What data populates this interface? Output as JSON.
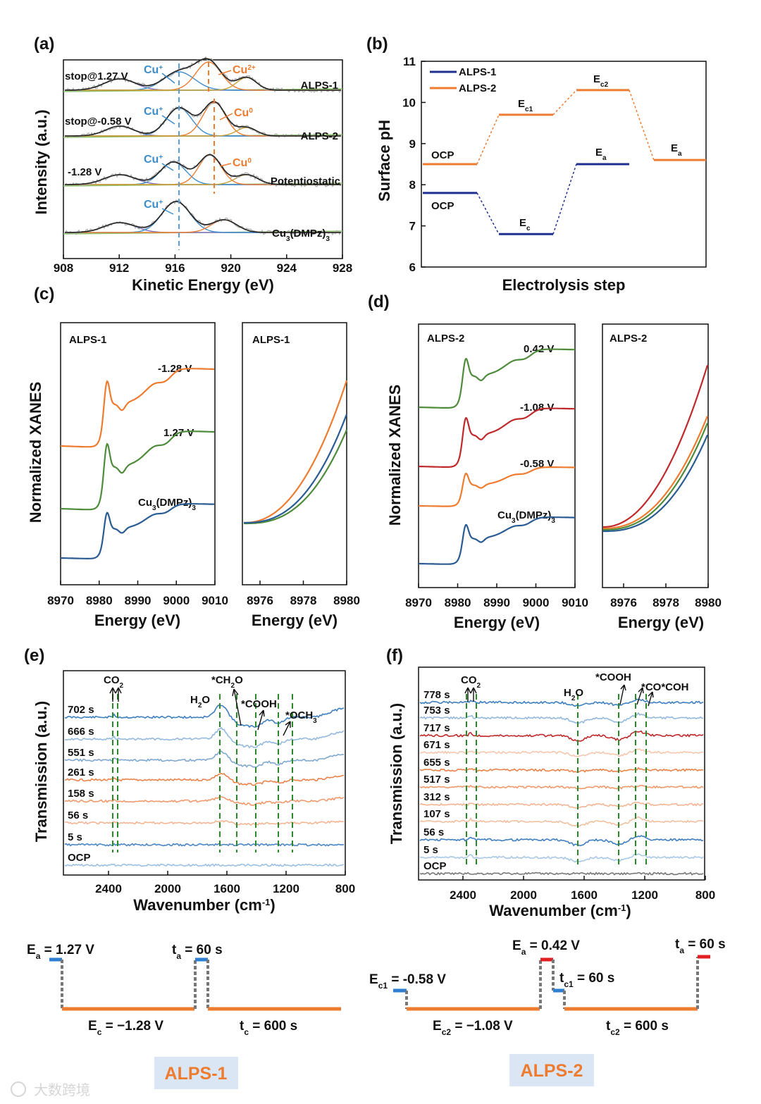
{
  "chart_data": [
    {
      "panel": "(a)",
      "type": "line",
      "xlabel": "Kinetic Energy (eV)",
      "ylabel": "Intensity (a.u.)",
      "xlim": [
        908,
        928
      ],
      "xticks": [
        "908",
        "912",
        "916",
        "920",
        "924",
        "928"
      ],
      "series": [
        {
          "name": "ALPS-1",
          "note": "stop@1.27 V",
          "peaks": {
            "Cu+": 916.2,
            "Cu2+": 918.5
          }
        },
        {
          "name": "ALPS-2",
          "note": "stop@-0.58 V",
          "peaks": {
            "Cu+": 916.2,
            "Cu0": 918.9
          }
        },
        {
          "name": "Potentiostatic",
          "note": "-1.28 V",
          "peaks": {
            "Cu+": 916.0,
            "Cu0": 918.5
          }
        },
        {
          "name": "Cu3(DMPz)3",
          "note": "",
          "peaks": {
            "Cu+": 916.0
          }
        }
      ],
      "annotations": [
        "Cu+",
        "Cu2+",
        "Cu0"
      ]
    },
    {
      "panel": "(b)",
      "type": "line",
      "xlabel": "Electrolysis step",
      "ylabel": "Surface pH",
      "ylim": [
        6,
        11
      ],
      "yticks": [
        "6",
        "7",
        "8",
        "9",
        "10",
        "11"
      ],
      "series": [
        {
          "name": "ALPS-1",
          "color": "#1f2f8f",
          "steps": [
            {
              "label": "OCP",
              "pH": 7.8
            },
            {
              "label": "Ec",
              "pH": 6.8
            },
            {
              "label": "Ea",
              "pH": 8.5
            }
          ]
        },
        {
          "name": "ALPS-2",
          "color": "#ee7c30",
          "steps": [
            {
              "label": "OCP",
              "pH": 8.5
            },
            {
              "label": "Ec1",
              "pH": 9.7
            },
            {
              "label": "Ec2",
              "pH": 10.3
            },
            {
              "label": "Ea",
              "pH": 8.6
            }
          ]
        }
      ]
    },
    {
      "panel": "(c)",
      "type": "line",
      "ylabel": "Normalized XANES",
      "subpanels": [
        {
          "title": "ALPS-1",
          "xlabel": "Energy (eV)",
          "xticks": [
            "8970",
            "8980",
            "8990",
            "9000",
            "9010"
          ],
          "series": [
            {
              "name": "-1.28 V",
              "color": "#ee7c30"
            },
            {
              "name": "1.27 V",
              "color": "#4e8b3a"
            },
            {
              "name": "Cu3(DMPz)3",
              "color": "#2a5c94"
            }
          ]
        },
        {
          "title": "ALPS-1",
          "xlabel": "Energy (eV)",
          "xticks": [
            "8976",
            "8978",
            "8980"
          ]
        }
      ]
    },
    {
      "panel": "(d)",
      "type": "line",
      "ylabel": "Normalized XANES",
      "subpanels": [
        {
          "title": "ALPS-2",
          "xlabel": "Energy (eV)",
          "xticks": [
            "8970",
            "8980",
            "8990",
            "9000",
            "9010"
          ],
          "series": [
            {
              "name": "0.42 V",
              "color": "#4e8b3a"
            },
            {
              "name": "-1.08 V",
              "color": "#c0292b"
            },
            {
              "name": "-0.58 V",
              "color": "#ee7c30"
            },
            {
              "name": "Cu3(DMPz)3",
              "color": "#2a5c94"
            }
          ]
        },
        {
          "title": "ALPS-2",
          "xlabel": "Energy (eV)",
          "xticks": [
            "8976",
            "8978",
            "8980"
          ]
        }
      ]
    },
    {
      "panel": "(e)",
      "type": "line",
      "xlabel": "Wavenumber (cm-1)",
      "ylabel": "Transmission (a.u.)",
      "xticks": [
        "2400",
        "2000",
        "1600",
        "1200",
        "800"
      ],
      "series_labels": [
        "702 s",
        "666 s",
        "551 s",
        "261 s",
        "158 s",
        "56 s",
        "5 s",
        "OCP"
      ],
      "annotations": [
        "CO2",
        "H2O",
        "*CH2O",
        "*COOH",
        "*OCH3"
      ]
    },
    {
      "panel": "(f)",
      "type": "line",
      "xlabel": "Wavenumber (cm-1)",
      "ylabel": "Transmission (a.u.)",
      "xticks": [
        "2400",
        "2000",
        "1600",
        "1200",
        "800"
      ],
      "series_labels": [
        "778 s",
        "753 s",
        "717 s",
        "671 s",
        "655 s",
        "517 s",
        "312 s",
        "107 s",
        "56 s",
        "5 s",
        "OCP"
      ],
      "annotations": [
        "CO2",
        "H2O",
        "*COOH",
        "*CO*COH"
      ]
    }
  ],
  "panel_tags": {
    "a": "(a)",
    "b": "(b)",
    "c": "(c)",
    "d": "(d)",
    "e": "(e)",
    "f": "(f)"
  },
  "protocol": {
    "alps1": {
      "ea": "1.27 V",
      "ta": "60 s",
      "ec": "−1.28 V",
      "tc": "600 s",
      "tag": "ALPS-1"
    },
    "alps2": {
      "ec1": "-0.58 V",
      "ea": "0.42 V",
      "tc1": "60 s",
      "ec2": "−1.08 V",
      "tc2": "600 s",
      "ta": "60 s",
      "tag": "ALPS-2"
    }
  },
  "watermark": "大数跨境"
}
